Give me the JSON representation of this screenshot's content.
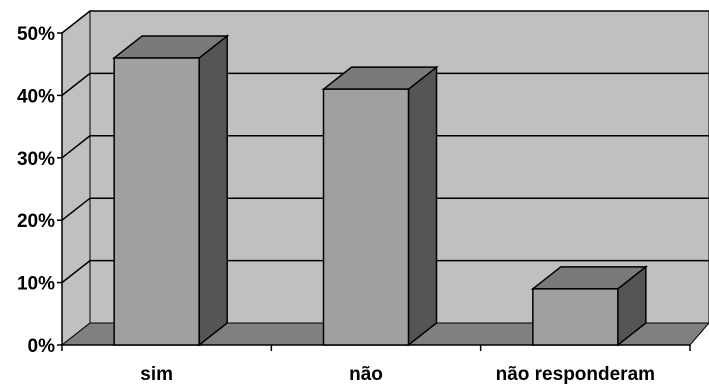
{
  "chart_data": {
    "type": "bar",
    "style": "3d-column",
    "categories": [
      "sim",
      "não",
      "não responderam"
    ],
    "values": [
      46,
      41,
      9
    ],
    "ylim": [
      0,
      50
    ],
    "yticks": [
      "0%",
      "10%",
      "20%",
      "30%",
      "40%",
      "50%"
    ],
    "ytick_values": [
      0,
      10,
      20,
      30,
      40,
      50
    ],
    "grid": true,
    "colors": {
      "wall": "#c0c0c0",
      "floor": "#808080",
      "bar_front": "#a0a0a0",
      "bar_top": "#7a7a7a",
      "bar_side": "#555555",
      "outline": "#000000"
    }
  }
}
